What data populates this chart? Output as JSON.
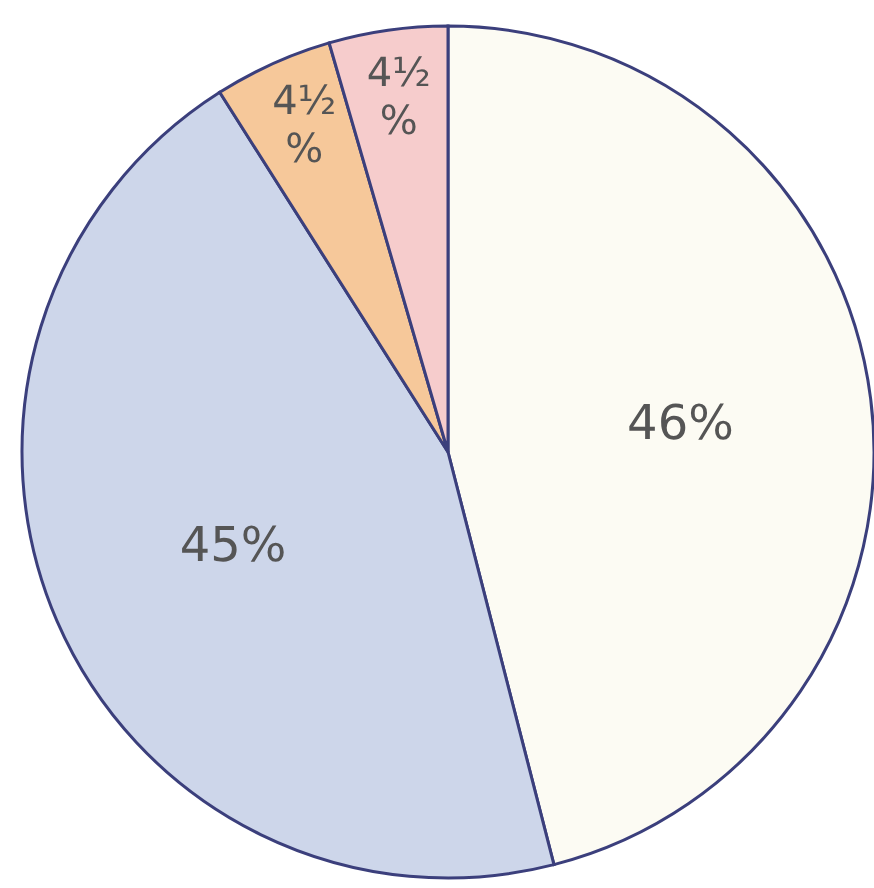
{
  "chart_data": {
    "type": "pie",
    "categories": [
      null,
      null,
      null,
      null
    ],
    "values": [
      46,
      45,
      4.5,
      4.5
    ],
    "colors": [
      "#fcfbf3",
      "#cdd6ea",
      "#f6c89a",
      "#f6cccc"
    ],
    "value_labels": [
      "46%",
      "45%",
      "4½%",
      "4½%"
    ]
  }
}
